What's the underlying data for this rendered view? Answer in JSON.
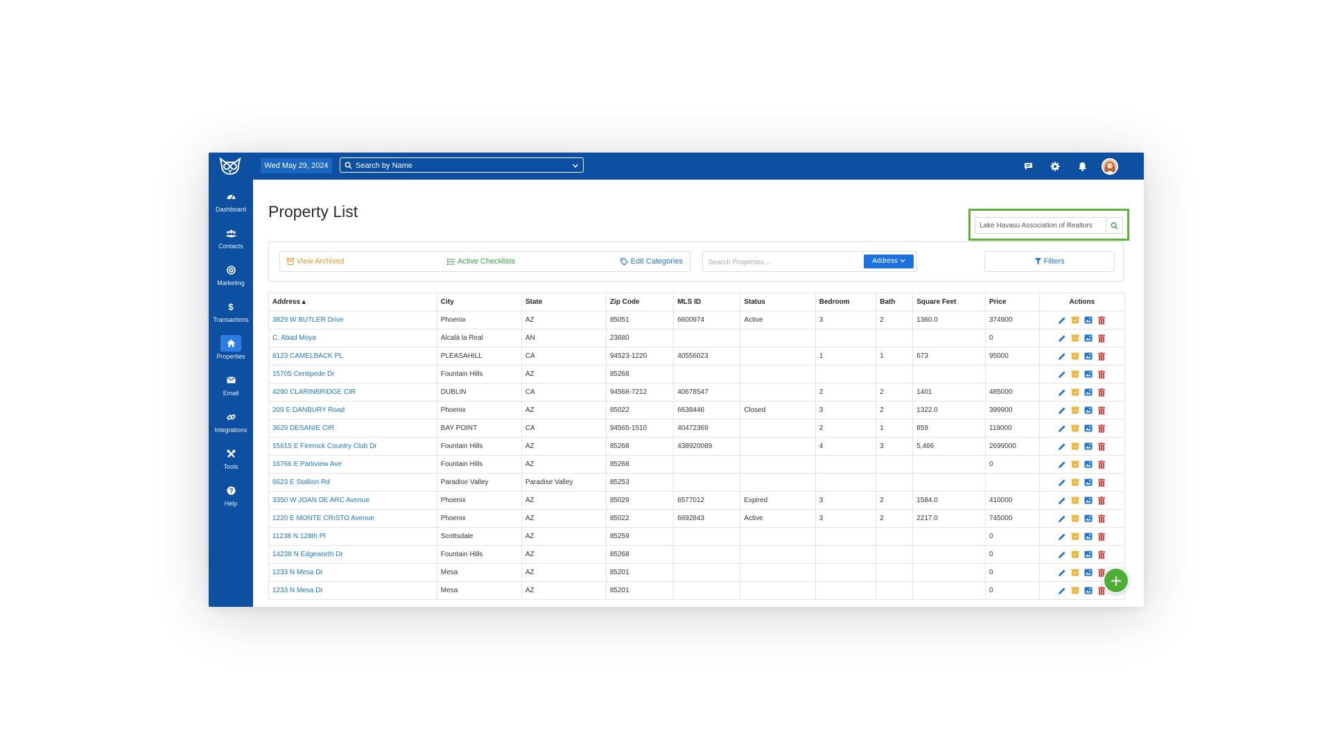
{
  "header": {
    "date": "Wed May 29, 2024",
    "search_placeholder": "Search by Name"
  },
  "sidebar": {
    "items": [
      {
        "label": "Dashboard",
        "icon": "dashboard-icon"
      },
      {
        "label": "Contacts",
        "icon": "contacts-icon"
      },
      {
        "label": "Marketing",
        "icon": "marketing-icon"
      },
      {
        "label": "Transactions",
        "icon": "dollar-icon"
      },
      {
        "label": "Properties",
        "icon": "home-icon",
        "active": true
      },
      {
        "label": "Email",
        "icon": "envelope-icon"
      },
      {
        "label": "Integrations",
        "icon": "link-icon"
      },
      {
        "label": "Tools",
        "icon": "tools-icon"
      },
      {
        "label": "Help",
        "icon": "help-icon"
      }
    ]
  },
  "page": {
    "title": "Property List"
  },
  "association": {
    "selected": "Lake Havasu Association of Realtors"
  },
  "toolbar": {
    "view_archived": "View Archived",
    "active_checklists": "Active Checklists",
    "edit_categories": "Edit Categories",
    "search_placeholder": "Search Properties...",
    "address_button": "Address",
    "filters": "Filters"
  },
  "table": {
    "columns": [
      "Address ▴",
      "City",
      "State",
      "Zip Code",
      "MLS ID",
      "Status",
      "Bedroom",
      "Bath",
      "Square Feet",
      "Price",
      "Actions"
    ],
    "rows": [
      [
        "3829 W BUTLER Drive",
        "Phoenix",
        "AZ",
        "85051",
        "6600974",
        "Active",
        "3",
        "2",
        "1360.0",
        "374900"
      ],
      [
        "C. Abad Moya",
        "Alcalá la Real",
        "AN",
        "23680",
        "",
        "",
        "",
        "",
        "",
        "0"
      ],
      [
        "8123 CAMELBACK PL",
        "PLEASAHILL",
        "CA",
        "94523-1220",
        "40556023",
        "",
        "1",
        "1",
        "673",
        "95000"
      ],
      [
        "15705 Centipede Dr",
        "Fountain Hills",
        "AZ",
        "85268",
        "",
        "",
        "",
        "",
        "",
        ""
      ],
      [
        "4290 CLARINBRIDGE CIR",
        "DUBLIN",
        "CA",
        "94568-7212",
        "40678547",
        "",
        "2",
        "2",
        "1401",
        "485000"
      ],
      [
        "209 E DANBURY Road",
        "Phoenix",
        "AZ",
        "85022",
        "6638446",
        "Closed",
        "3",
        "2",
        "1322.0",
        "399900"
      ],
      [
        "3629 DESANIE CIR",
        "BAY POINT",
        "CA",
        "94565-1510",
        "40472369",
        "",
        "2",
        "1",
        "859",
        "119000"
      ],
      [
        "15615 E Firerock Country Club Dr",
        "Fountain Hills",
        "AZ",
        "85268",
        "438920089",
        "",
        "4",
        "3",
        "5,466",
        "2699000"
      ],
      [
        "16766 E Parkview Ave",
        "Fountain Hills",
        "AZ",
        "85268",
        "",
        "",
        "",
        "",
        "",
        "0"
      ],
      [
        "6623 E Stallion Rd",
        "Paradise Valley",
        "Paradise Valley",
        "85253",
        "",
        "",
        "",
        "",
        "",
        ""
      ],
      [
        "3350 W JOAN DE ARC Avenue",
        "Phoenix",
        "AZ",
        "85029",
        "6577012",
        "Expired",
        "3",
        "2",
        "1584.0",
        "410000"
      ],
      [
        "1220 E MONTE CRISTO Avenue",
        "Phoenix",
        "AZ",
        "85022",
        "6692843",
        "Active",
        "3",
        "2",
        "2217.0",
        "745000"
      ],
      [
        "11238 N 128th Pl",
        "Scottsdale",
        "AZ",
        "85259",
        "",
        "",
        "",
        "",
        "",
        "0"
      ],
      [
        "14238 N Edgeworth Dr",
        "Fountain Hills",
        "AZ",
        "85268",
        "",
        "",
        "",
        "",
        "",
        "0"
      ],
      [
        "1233 N Mesa Dr",
        "Mesa",
        "AZ",
        "85201",
        "",
        "",
        "",
        "",
        "",
        "0"
      ],
      [
        "1233 N Mesa Dr",
        "Mesa",
        "AZ",
        "85201",
        "",
        "",
        "",
        "",
        "",
        "0"
      ]
    ]
  },
  "fab": {
    "label": "+"
  },
  "colors": {
    "brand": "#0d4fa0",
    "accent": "#1a73e0",
    "highlight": "#5cb335",
    "edit": "#1e75d2",
    "archive": "#f0b63c",
    "delete": "#e0403b"
  }
}
